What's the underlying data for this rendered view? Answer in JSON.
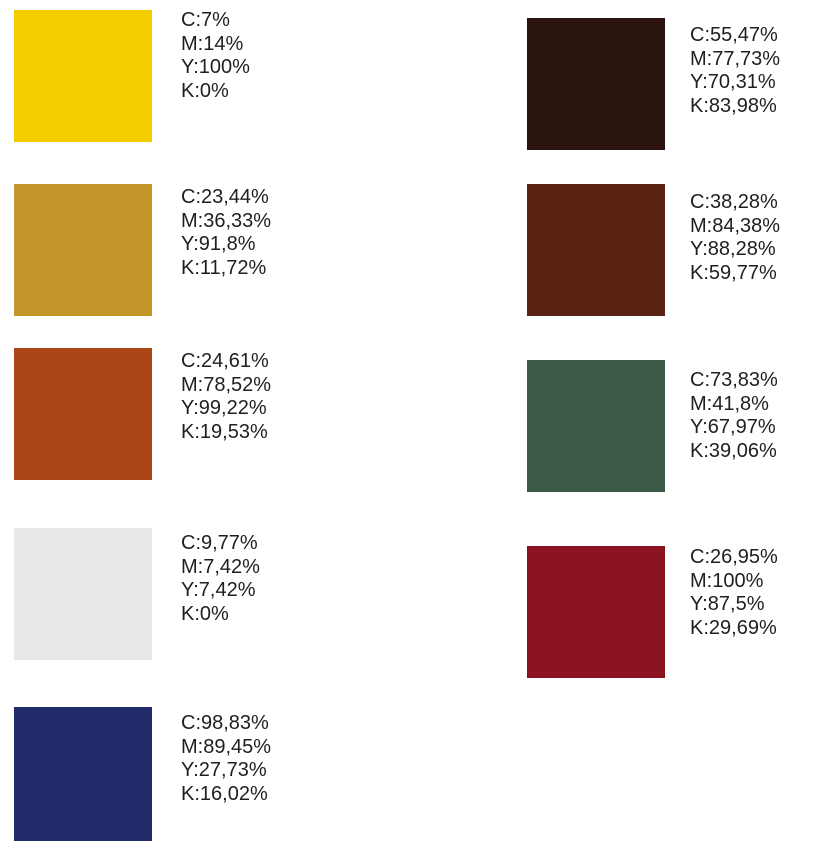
{
  "swatches": [
    {
      "color": "#f2cd00",
      "c": "C:7%",
      "m": "M:14%",
      "y": "Y:100%",
      "k": "K:0%"
    },
    {
      "color": "#c3952a",
      "c": "C:23,44%",
      "m": "M:36,33%",
      "y": "Y:91,8%",
      "k": "K:11,72%"
    },
    {
      "color": "#ad4616",
      "c": "C:24,61%",
      "m": "M:78,52%",
      "y": "Y:99,22%",
      "k": "K:19,53%"
    },
    {
      "color": "#e8e8e8",
      "c": "C:9,77%",
      "m": "M:7,42%",
      "y": "Y:7,42%",
      "k": "K:0%"
    },
    {
      "color": "#232c6a",
      "c": "C:98,83%",
      "m": "M:89,45%",
      "y": "Y:27,73%",
      "k": "K:16,02%"
    },
    {
      "color": "#2a130e",
      "c": "C:55,47%",
      "m": "M:77,73%",
      "y": "Y:70,31%",
      "k": "K:83,98%"
    },
    {
      "color": "#5a2213",
      "c": "C:38,28%",
      "m": "M:84,38%",
      "y": "Y:88,28%",
      "k": "K:59,77%"
    },
    {
      "color": "#3b5a48",
      "c": "C:73,83%",
      "m": "M:41,8%",
      "y": "Y:67,97%",
      "k": "K:39,06%"
    },
    {
      "color": "#8b1220",
      "c": "C:26,95%",
      "m": "M:100%",
      "y": "Y:87,5%",
      "k": "K:29,69%"
    }
  ]
}
